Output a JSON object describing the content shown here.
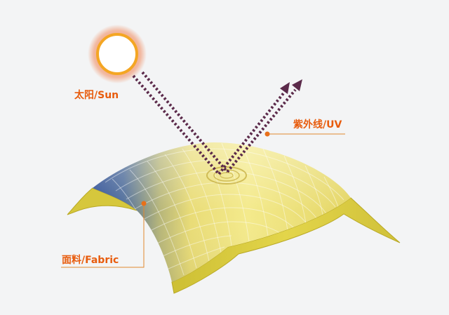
{
  "labels": {
    "sun": "太阳/Sun",
    "uv": "紫外线/UV",
    "fabric": "面料/Fabric"
  },
  "colors": {
    "background": "#f3f4f5",
    "label_text": "#e85c0d",
    "leader_line": "#e0872e",
    "dot": "#e8701a",
    "ray": "#5b2a4a",
    "sun_glow": "#ef8a5a",
    "sun_ring": "#f4a623",
    "fabric_yellow": "#f2e47a",
    "fabric_blue": "#3d5c9a",
    "fabric_edge": "#c8b62a"
  },
  "icons": {
    "sun": "sun-icon",
    "arrows": "arrowhead-icon"
  }
}
